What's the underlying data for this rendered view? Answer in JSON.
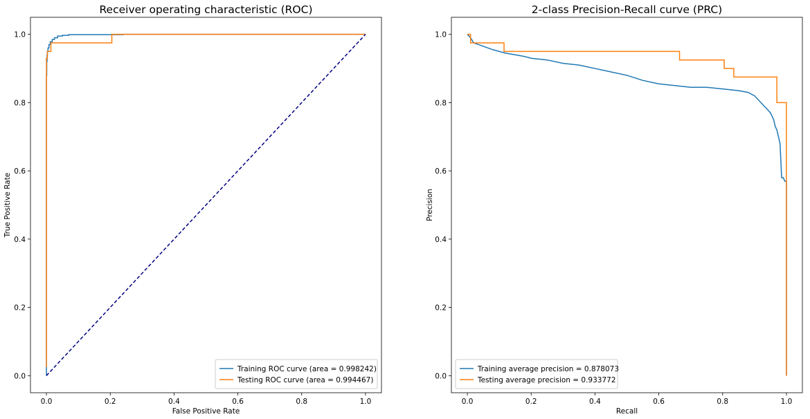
{
  "chart_data": [
    {
      "type": "line",
      "title": "Receiver operating characteristic (ROC)",
      "xlabel": "False Positive Rate",
      "ylabel": "True Positive Rate",
      "xlim": [
        -0.05,
        1.05
      ],
      "ylim": [
        -0.05,
        1.05
      ],
      "xticks": [
        "0.0",
        "0.2",
        "0.4",
        "0.6",
        "0.8",
        "1.0"
      ],
      "yticks": [
        "0.0",
        "0.2",
        "0.4",
        "0.6",
        "0.8",
        "1.0"
      ],
      "grid": false,
      "legend_position": "lower right",
      "series": [
        {
          "name": "Training ROC curve (area = 0.998242)",
          "color": "#1f77b4",
          "x": [
            0,
            0,
            0.001,
            0.001,
            0.002,
            0.002,
            0.003,
            0.003,
            0.005,
            0.005,
            0.008,
            0.008,
            0.012,
            0.012,
            0.018,
            0.018,
            0.025,
            0.025,
            0.035,
            0.035,
            0.05,
            0.05,
            0.07,
            0.07,
            0.24,
            0.24,
            1.0
          ],
          "y": [
            0,
            0.88,
            0.88,
            0.92,
            0.92,
            0.94,
            0.94,
            0.95,
            0.95,
            0.96,
            0.96,
            0.97,
            0.97,
            0.978,
            0.978,
            0.985,
            0.985,
            0.99,
            0.99,
            0.995,
            0.995,
            0.997,
            0.997,
            0.999,
            0.999,
            1.0,
            1.0
          ]
        },
        {
          "name": "Testing ROC curve (area = 0.994467)",
          "color": "#ff7f0e",
          "x": [
            0,
            0,
            0.003,
            0.003,
            0.006,
            0.006,
            0.014,
            0.014,
            0.205,
            0.205,
            1.0
          ],
          "y": [
            0.025,
            0.93,
            0.93,
            0.95,
            0.95,
            0.95,
            0.95,
            0.975,
            0.975,
            1.0,
            1.0
          ]
        },
        {
          "name": "",
          "color": "#000080",
          "dashed": true,
          "x": [
            0,
            1
          ],
          "y": [
            0,
            1
          ]
        }
      ]
    },
    {
      "type": "line",
      "title": "2-class Precision-Recall curve (PRC)",
      "xlabel": "Recall",
      "ylabel": "Precision",
      "xlim": [
        -0.05,
        1.05
      ],
      "ylim": [
        -0.05,
        1.05
      ],
      "xticks": [
        "0.0",
        "0.2",
        "0.4",
        "0.6",
        "0.8",
        "1.0"
      ],
      "yticks": [
        "0.0",
        "0.2",
        "0.4",
        "0.6",
        "0.8",
        "1.0"
      ],
      "grid": false,
      "legend_position": "lower left",
      "series": [
        {
          "name": "Training average precision = 0.878073",
          "color": "#1f77b4",
          "x": [
            0.0,
            0.01,
            0.02,
            0.05,
            0.08,
            0.1,
            0.12,
            0.15,
            0.18,
            0.2,
            0.25,
            0.3,
            0.35,
            0.4,
            0.45,
            0.5,
            0.55,
            0.6,
            0.65,
            0.7,
            0.75,
            0.8,
            0.85,
            0.88,
            0.9,
            0.92,
            0.94,
            0.95,
            0.96,
            0.965,
            0.97,
            0.975,
            0.98,
            0.982,
            0.984,
            0.985,
            0.99,
            0.995,
            1.0,
            1.0
          ],
          "y": [
            1.0,
            0.99,
            0.975,
            0.965,
            0.955,
            0.95,
            0.945,
            0.94,
            0.935,
            0.93,
            0.925,
            0.915,
            0.91,
            0.9,
            0.89,
            0.88,
            0.865,
            0.855,
            0.85,
            0.845,
            0.845,
            0.84,
            0.835,
            0.83,
            0.82,
            0.8,
            0.78,
            0.77,
            0.75,
            0.73,
            0.72,
            0.7,
            0.68,
            0.64,
            0.6,
            0.58,
            0.58,
            0.57,
            0.57,
            0.0
          ]
        },
        {
          "name": "Testing average precision = 0.933772",
          "color": "#ff7f0e",
          "x": [
            0.0,
            0.01,
            0.01,
            0.115,
            0.115,
            0.665,
            0.665,
            0.805,
            0.805,
            0.835,
            0.835,
            0.97,
            0.97,
            1.0,
            1.0
          ],
          "y": [
            1.0,
            1.0,
            0.975,
            0.975,
            0.95,
            0.95,
            0.925,
            0.925,
            0.9,
            0.9,
            0.875,
            0.875,
            0.8,
            0.8,
            0.0
          ]
        }
      ]
    }
  ]
}
